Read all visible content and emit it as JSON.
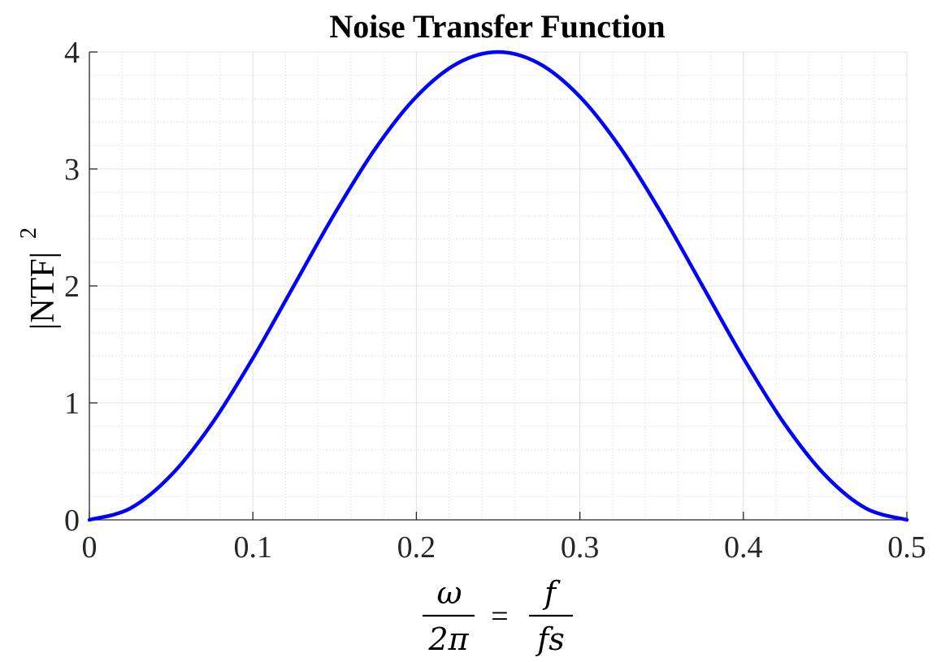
{
  "chart_data": {
    "type": "line",
    "title": "Noise Transfer Function",
    "xlabel": {
      "lhs_numerator": "ω",
      "lhs_denominator": "2π",
      "equals": "=",
      "rhs_numerator": "f",
      "rhs_denominator": "fs"
    },
    "ylabel": {
      "text": "|NTF|",
      "superscript": "2"
    },
    "xlim": [
      0,
      0.5
    ],
    "ylim": [
      0,
      4
    ],
    "xticks": [
      0,
      0.1,
      0.2,
      0.3,
      0.4,
      0.5
    ],
    "xtick_labels": [
      "0",
      "0.1",
      "0.2",
      "0.3",
      "0.4",
      "0.5"
    ],
    "yticks": [
      0,
      1,
      2,
      3,
      4
    ],
    "ytick_labels": [
      "0",
      "1",
      "2",
      "3",
      "4"
    ],
    "grid": true,
    "minor_grid": true,
    "series": [
      {
        "color": "#0000ff",
        "x": [
          0,
          0.025,
          0.05,
          0.075,
          0.1,
          0.125,
          0.15,
          0.175,
          0.2,
          0.225,
          0.25,
          0.275,
          0.3,
          0.325,
          0.35,
          0.375,
          0.4,
          0.425,
          0.45,
          0.475,
          0.5
        ],
        "y": [
          0,
          0.0979,
          0.382,
          0.824,
          1.382,
          2.0,
          2.618,
          3.176,
          3.618,
          3.902,
          4.0,
          3.902,
          3.618,
          3.176,
          2.618,
          2.0,
          1.382,
          0.824,
          0.382,
          0.0979,
          0
        ]
      }
    ]
  }
}
